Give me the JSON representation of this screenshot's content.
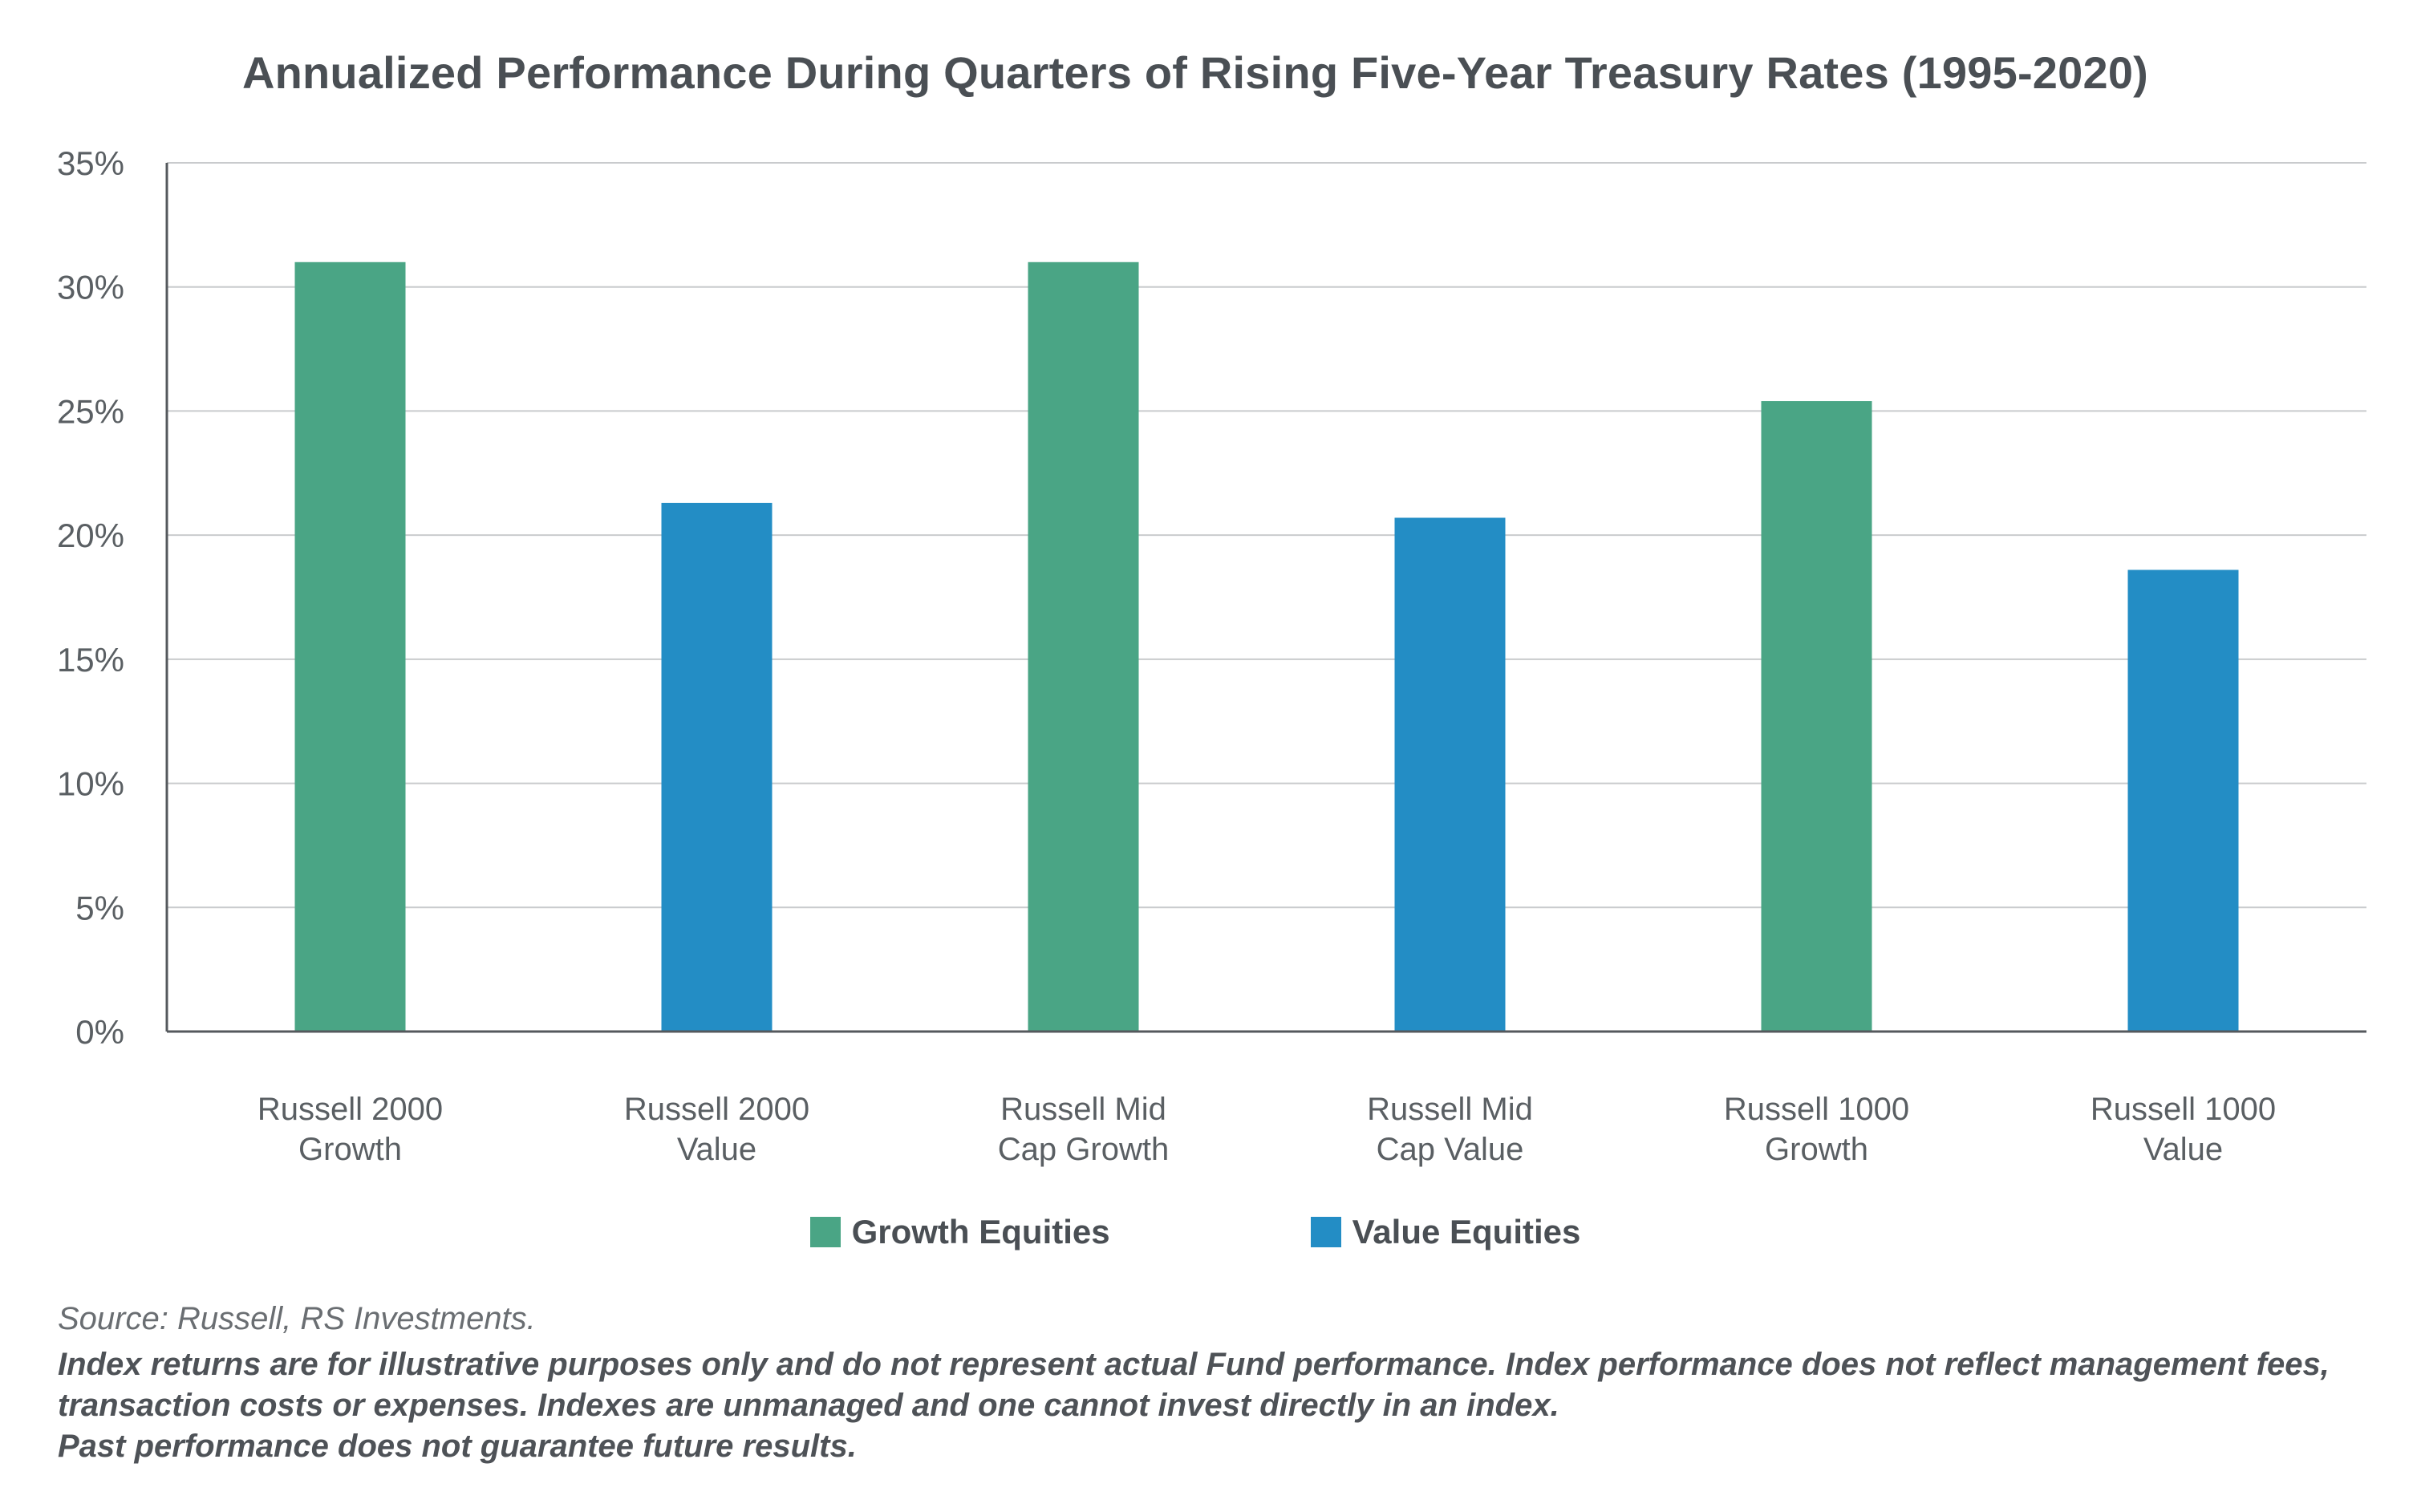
{
  "colors": {
    "growth": "#4aa585",
    "value": "#238dc5",
    "grid": "#c9cbcd",
    "axis": "#55595d"
  },
  "chart_data": {
    "type": "bar",
    "title": "Annualized Performance During Quarters of Rising Five-Year Treasury Rates (1995-2020)",
    "categories": [
      "Russell 2000 Growth",
      "Russell 2000 Value",
      "Russell Mid Cap Growth",
      "Russell Mid Cap Value",
      "Russell 1000 Growth",
      "Russell 1000 Value"
    ],
    "category_lines": [
      [
        "Russell 2000",
        "Growth"
      ],
      [
        "Russell 2000",
        "Value"
      ],
      [
        "Russell Mid",
        "Cap Growth"
      ],
      [
        "Russell Mid",
        "Cap Value"
      ],
      [
        "Russell 1000",
        "Growth"
      ],
      [
        "Russell 1000",
        "Value"
      ]
    ],
    "values": [
      31.0,
      21.3,
      31.0,
      20.7,
      25.4,
      18.6
    ],
    "bar_series": [
      "Growth Equities",
      "Value Equities",
      "Growth Equities",
      "Value Equities",
      "Growth Equities",
      "Value Equities"
    ],
    "legend": [
      {
        "name": "Growth Equities",
        "color": "#4aa585"
      },
      {
        "name": "Value Equities",
        "color": "#238dc5"
      }
    ],
    "legend_position": "bottom",
    "ylim": [
      0,
      35
    ],
    "y_ticks": [
      0,
      5,
      10,
      15,
      20,
      25,
      30,
      35
    ],
    "y_tick_labels": [
      "0%",
      "5%",
      "10%",
      "15%",
      "20%",
      "25%",
      "30%",
      "35%"
    ],
    "grid": true,
    "xlabel": "",
    "ylabel": ""
  },
  "footer": {
    "source": "Source: Russell, RS Investments.",
    "disclaimer_1": "Index returns are for illustrative purposes only and do not represent actual Fund performance. Index performance does not reflect management fees, transaction costs or expenses. Indexes are unmanaged and one cannot invest directly in an index.",
    "disclaimer_2": "Past performance does not guarantee future results."
  }
}
